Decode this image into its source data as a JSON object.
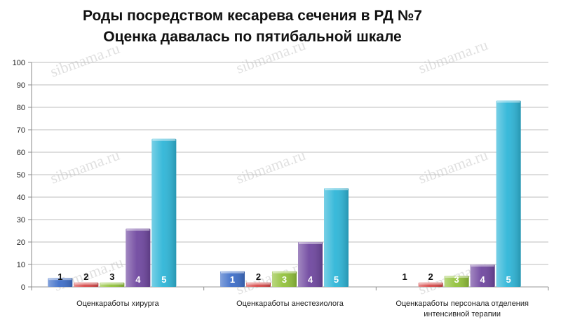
{
  "chart_data": {
    "type": "bar",
    "title": "Роды посредством кесарева сечения в РД №7",
    "subtitle": "Оценка давалась по пятибальной шкале",
    "categories": [
      [
        "Оценкаработы хирурга"
      ],
      [
        "Оценкаработы анестезиолога"
      ],
      [
        "Оценкаработы персонала отделения",
        "интенсивной терапии"
      ]
    ],
    "series": [
      {
        "name": "1",
        "values": [
          4,
          7,
          0
        ],
        "color": "#3f6fc9"
      },
      {
        "name": "2",
        "values": [
          2,
          2,
          2
        ],
        "color": "#d84b4b"
      },
      {
        "name": "3",
        "values": [
          2,
          7,
          5
        ],
        "color": "#93c23c"
      },
      {
        "name": "4",
        "values": [
          26,
          20,
          10
        ],
        "color": "#7048a0"
      },
      {
        "name": "5",
        "values": [
          66,
          44,
          83
        ],
        "color": "#2fb6d8"
      }
    ],
    "ylim": [
      0,
      100
    ],
    "yticks": [
      0,
      10,
      20,
      30,
      40,
      50,
      60,
      70,
      80,
      90,
      100
    ],
    "grid": true,
    "watermark": "sibmama.ru"
  }
}
